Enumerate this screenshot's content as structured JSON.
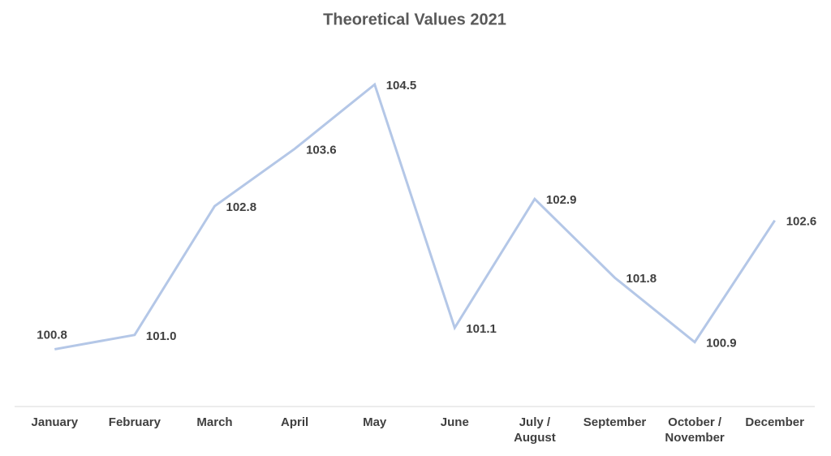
{
  "chart_data": {
    "type": "line",
    "title": "Theoretical Values 2021",
    "categories": [
      "January",
      "February",
      "March",
      "April",
      "May",
      "June",
      "July / August",
      "September",
      "October / November",
      "December"
    ],
    "series": [
      {
        "name": "Theoretical Values",
        "color": "#b4c7e7",
        "values": [
          100.8,
          101.0,
          102.8,
          103.6,
          104.5,
          101.1,
          102.9,
          101.8,
          100.9,
          102.6
        ],
        "value_labels": [
          "100.8",
          "101.0",
          "102.8",
          "103.6",
          "104.5",
          "101.1",
          "102.9",
          "101.8",
          "100.9",
          "102.6"
        ]
      }
    ],
    "ylim": [
      100,
      105
    ]
  }
}
